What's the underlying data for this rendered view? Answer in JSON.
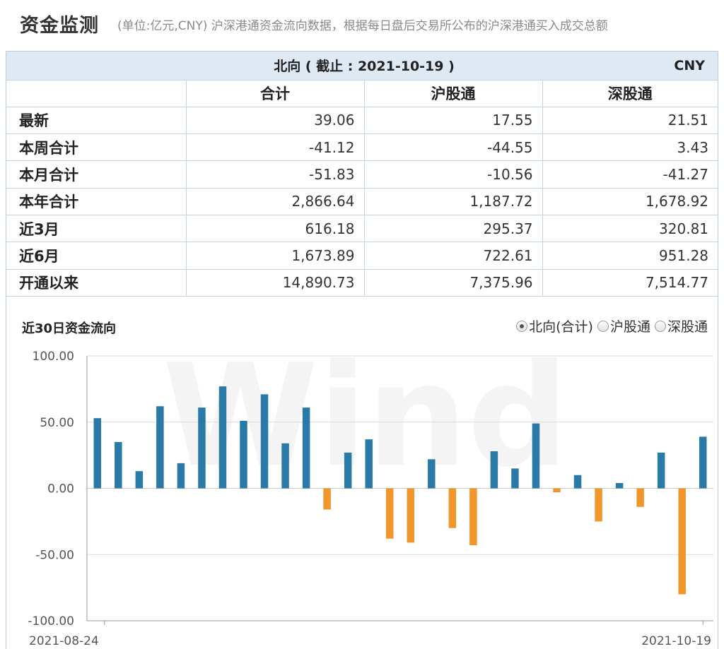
{
  "header": {
    "title": "资金监测",
    "note": "(单位:亿元,CNY)   沪深港通资金流向数据，根据每日盘后交易所公布的沪深港通买入成交总额"
  },
  "table": {
    "banner": "北向 ( 截止 : 2021-10-19 )",
    "currency": "CNY",
    "columns": [
      "合计",
      "沪股通",
      "深股通"
    ],
    "rows": [
      {
        "label": "最新",
        "values": [
          "39.06",
          "17.55",
          "21.51"
        ]
      },
      {
        "label": "本周合计",
        "values": [
          "-41.12",
          "-44.55",
          "3.43"
        ]
      },
      {
        "label": "本月合计",
        "values": [
          "-51.83",
          "-10.56",
          "-41.27"
        ]
      },
      {
        "label": "本年合计",
        "values": [
          "2,866.64",
          "1,187.72",
          "1,678.92"
        ]
      },
      {
        "label": "近3月",
        "values": [
          "616.18",
          "295.37",
          "320.81"
        ]
      },
      {
        "label": "近6月",
        "values": [
          "1,673.89",
          "722.61",
          "951.28"
        ]
      },
      {
        "label": "开通以来",
        "values": [
          "14,890.73",
          "7,375.96",
          "7,514.77"
        ]
      }
    ]
  },
  "chart_controls": {
    "title": "近30日资金流向",
    "options": [
      {
        "label": "北向(合计)",
        "selected": true
      },
      {
        "label": "沪股通",
        "selected": false
      },
      {
        "label": "深股通",
        "selected": false
      }
    ],
    "watermark": "Wind"
  },
  "colors": {
    "positive": "#2a7aa8",
    "negative": "#f0962a",
    "grid": "#d9d9d9",
    "axis": "#9a9a9a",
    "banner_bg": "#dfe9f4"
  },
  "chart_data": {
    "type": "bar",
    "title": "近30日资金流向",
    "ylim": [
      -100,
      100
    ],
    "yticks": [
      "100.00",
      "50.00",
      "0.00",
      "-50.00",
      "-100.00"
    ],
    "ytick_values": [
      100,
      50,
      0,
      -50,
      -100
    ],
    "x_first_label": "2021-08-24",
    "x_last_label": "2021-10-19",
    "grid": true,
    "values": [
      53,
      35,
      13,
      62,
      19,
      61,
      77,
      51,
      71,
      34,
      61,
      -16,
      27,
      37,
      -38,
      -41,
      22,
      -30,
      -43,
      28,
      15,
      49,
      -3,
      10,
      -25,
      4,
      -14,
      27,
      -80,
      39
    ]
  }
}
